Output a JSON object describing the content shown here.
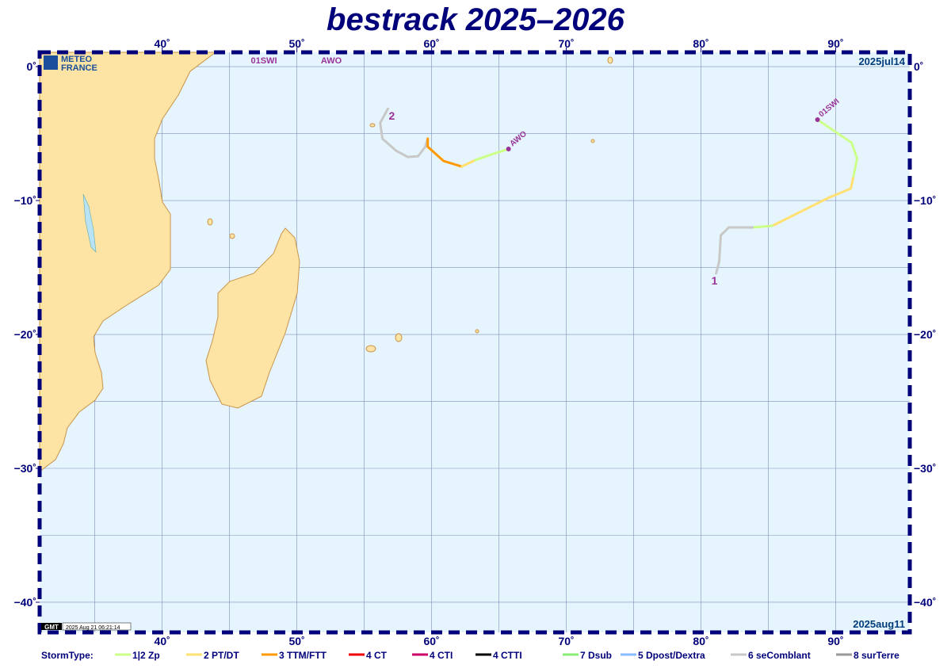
{
  "title": "bestrack 2025–2026",
  "logo": [
    "METEO",
    "FRANCE"
  ],
  "top_names": [
    "01SWI",
    "AWO"
  ],
  "date_start": "2025jul14",
  "date_end": "2025aug11",
  "timestamp": "2025 Aug 21 06:21:14",
  "gmt": "GMT",
  "map": {
    "lonlim": [
      30.9,
      95.5
    ],
    "latlim": [
      1.07,
      -42.25
    ],
    "lon_ticks": [
      {
        "value": 40,
        "label": "40˚"
      },
      {
        "value": 50,
        "label": "50˚"
      },
      {
        "value": 60,
        "label": "60˚"
      },
      {
        "value": 70,
        "label": "70˚"
      },
      {
        "value": 80,
        "label": "80˚"
      },
      {
        "value": 90,
        "label": "90˚"
      }
    ],
    "lat_ticks": [
      {
        "value": 0,
        "label": "0˚"
      },
      {
        "value": -10,
        "label": "−10˚"
      },
      {
        "value": -20,
        "label": "−20˚"
      },
      {
        "value": -30,
        "label": "−30˚"
      },
      {
        "value": -40,
        "label": "−40˚"
      }
    ],
    "grid_lon": [
      35,
      40,
      45,
      50,
      55,
      60,
      65,
      70,
      75,
      80,
      85,
      90
    ],
    "grid_lat": [
      0,
      -5,
      -10,
      -15,
      -20,
      -25,
      -30,
      -35,
      -40
    ]
  },
  "legend": {
    "title": "StormType:",
    "items": [
      {
        "label": "1|2 Zp",
        "color": "#ccff88"
      },
      {
        "label": "2 PT/DT",
        "color": "#ffe070"
      },
      {
        "label": "3 TTM/FTT",
        "color": "#ff9900"
      },
      {
        "label": "4 CT",
        "color": "#ee0000"
      },
      {
        "label": "4 CTI",
        "color": "#cc0066"
      },
      {
        "label": "4 CTTI",
        "color": "#000000"
      },
      {
        "label": "7 Dsub",
        "color": "#88ee77"
      },
      {
        "label": "5 Dpost/Dextra",
        "color": "#88bbff"
      },
      {
        "label": "6 seComblant",
        "color": "#c8c8c8"
      },
      {
        "label": "8 surTerre",
        "color": "#999999"
      }
    ]
  },
  "tracks": [
    {
      "number": "1",
      "name": "01SWI",
      "segments": [
        {
          "type": 0,
          "lon": [
            88.65,
            91.18,
            91.59,
            91.29
          ],
          "lat": [
            -3.96,
            -5.68,
            -6.86,
            -8.34
          ]
        },
        {
          "type": 1,
          "lon": [
            91.29,
            91.12,
            89.41,
            85.29
          ],
          "lat": [
            -8.34,
            -9.11,
            -9.82,
            -11.89
          ]
        },
        {
          "type": 0,
          "lon": [
            85.29,
            83.82
          ],
          "lat": [
            -11.89,
            -12.01
          ]
        },
        {
          "type": 8,
          "lon": [
            83.82,
            82.06,
            81.47,
            81.35,
            81.12
          ],
          "lat": [
            -12.01,
            -12.01,
            -12.6,
            -14.56,
            -15.44
          ]
        }
      ]
    },
    {
      "number": "2",
      "name": "AWO",
      "segments": [
        {
          "type": 8,
          "lon": [
            56.76,
            56.18,
            56.35,
            57.35,
            58.24,
            59.0,
            59.53,
            59.71
          ],
          "lat": [
            -3.14,
            -4.2,
            -5.38,
            -6.27,
            -6.75,
            -6.69,
            -5.98,
            -5.38
          ]
        },
        {
          "type": 2,
          "lon": [
            59.71,
            59.71,
            60.88,
            62.24
          ],
          "lat": [
            -5.38,
            -5.98,
            -7.04,
            -7.46
          ]
        },
        {
          "type": 1,
          "lon": [
            62.24,
            63.24
          ],
          "lat": [
            -7.46,
            -6.98
          ]
        },
        {
          "type": 0,
          "lon": [
            63.24,
            64.41,
            65.71
          ],
          "lat": [
            -6.98,
            -6.57,
            -6.15
          ]
        }
      ]
    }
  ]
}
